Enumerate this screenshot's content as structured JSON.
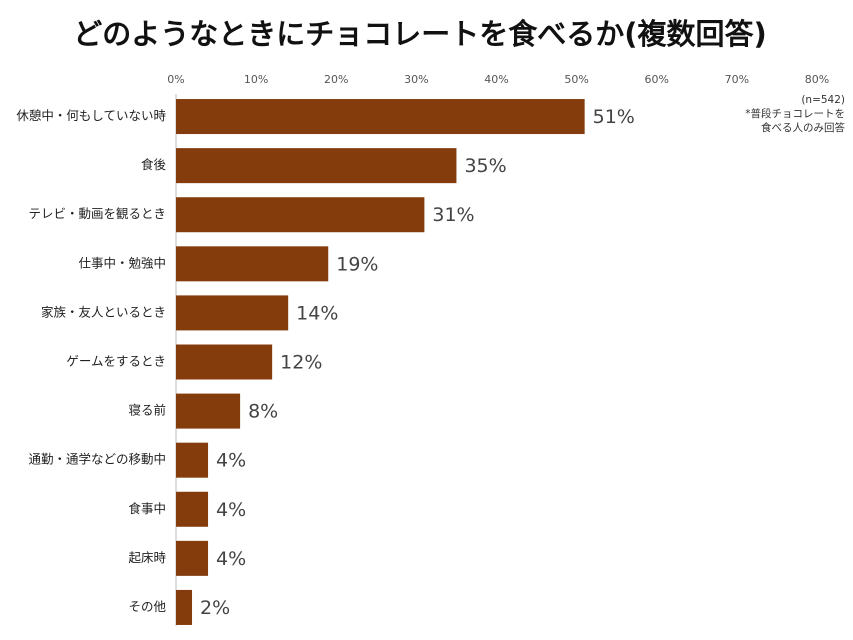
{
  "chart_data": {
    "type": "bar",
    "orientation": "horizontal",
    "title": "どのようなときにチョコレートを食べるか(複数回答)",
    "annotations": [
      "(n=542)",
      "*普段チョコレートを",
      "食べる人のみ回答"
    ],
    "categories": [
      "休憩中・何もしていない時",
      "食後",
      "テレビ・動画を観るとき",
      "仕事中・勉強中",
      "家族・友人といるとき",
      "ゲームをするとき",
      "寝る前",
      "通勤・通学などの移動中",
      "食事中",
      "起床時",
      "その他"
    ],
    "values": [
      51,
      35,
      31,
      19,
      14,
      12,
      8,
      4,
      4,
      4,
      2
    ],
    "value_labels": [
      "51%",
      "35%",
      "31%",
      "19%",
      "14%",
      "12%",
      "8%",
      "4%",
      "4%",
      "4%",
      "2%"
    ],
    "color": "#843c0c",
    "xlim": [
      0,
      80
    ],
    "xticks": [
      {
        "value": 0,
        "label": "0%"
      },
      {
        "value": 10,
        "label": "10%"
      },
      {
        "value": 20,
        "label": "20%"
      },
      {
        "value": 30,
        "label": "30%"
      },
      {
        "value": 40,
        "label": "40%"
      },
      {
        "value": 50,
        "label": "50%"
      },
      {
        "value": 60,
        "label": "60%"
      },
      {
        "value": 70,
        "label": "70%"
      },
      {
        "value": 80,
        "label": "80%"
      }
    ],
    "grid": false
  }
}
